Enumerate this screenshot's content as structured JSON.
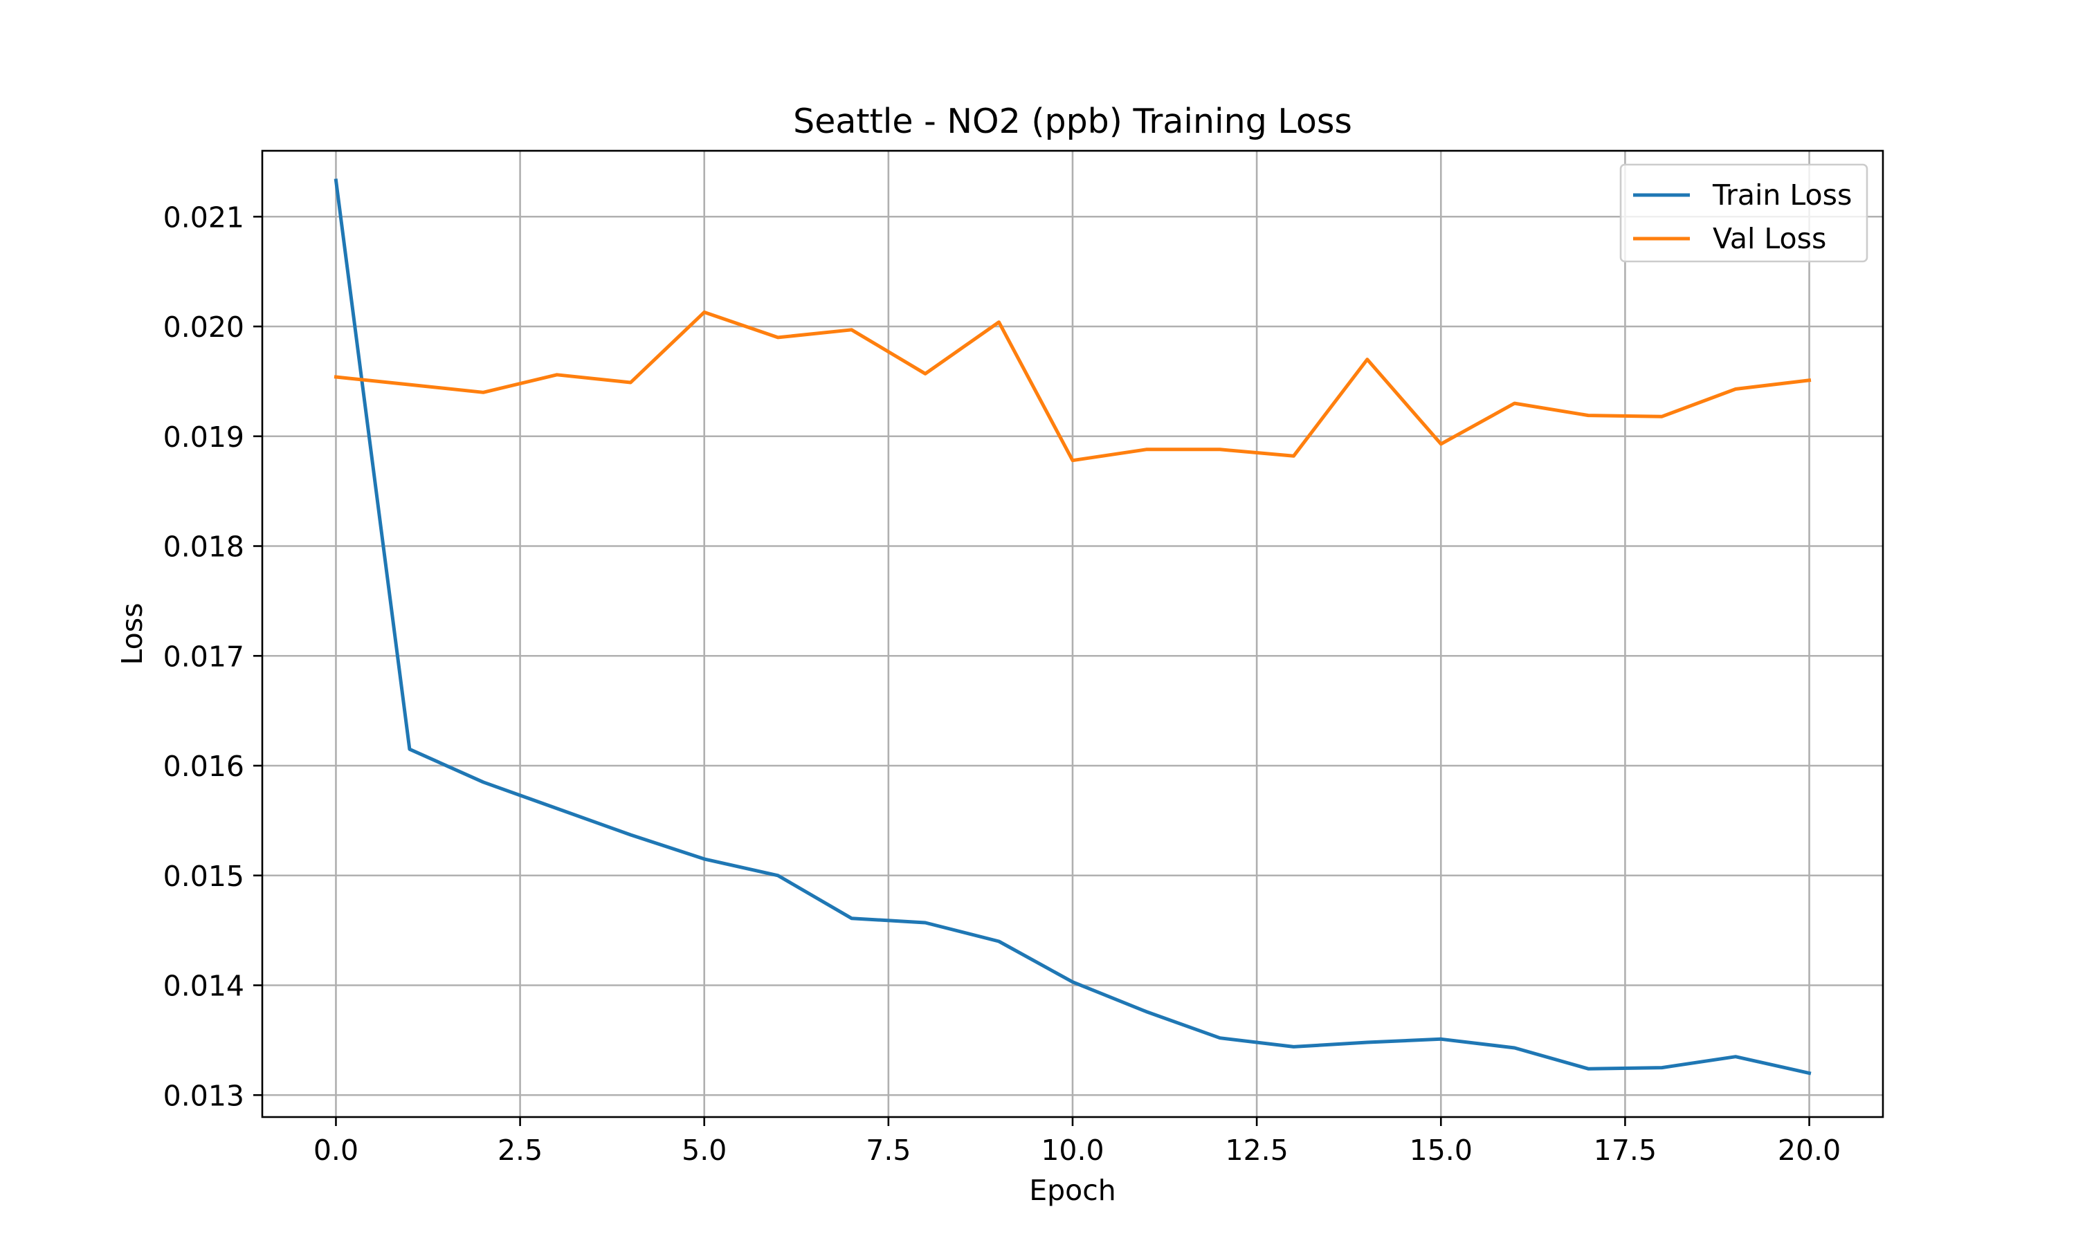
{
  "chart_data": {
    "type": "line",
    "title": "Seattle - NO2 (ppb) Training Loss",
    "xlabel": "Epoch",
    "ylabel": "Loss",
    "xlim": [
      -1.0,
      21.0
    ],
    "ylim": [
      0.0128,
      0.0216
    ],
    "xticks": [
      0.0,
      2.5,
      5.0,
      7.5,
      10.0,
      12.5,
      15.0,
      17.5,
      20.0
    ],
    "xtick_labels": [
      "0.0",
      "2.5",
      "5.0",
      "7.5",
      "10.0",
      "12.5",
      "15.0",
      "17.5",
      "20.0"
    ],
    "yticks": [
      0.013,
      0.014,
      0.015,
      0.016,
      0.017,
      0.018,
      0.019,
      0.02,
      0.021
    ],
    "ytick_labels": [
      "0.013",
      "0.014",
      "0.015",
      "0.016",
      "0.017",
      "0.018",
      "0.019",
      "0.020",
      "0.021"
    ],
    "grid": true,
    "legend_position": "top-right",
    "x": [
      0,
      1,
      2,
      3,
      4,
      5,
      6,
      7,
      8,
      9,
      10,
      11,
      12,
      13,
      14,
      15,
      16,
      17,
      18,
      19,
      20
    ],
    "series": [
      {
        "name": "Train Loss",
        "color": "#1f77b4",
        "values": [
          0.02133,
          0.01615,
          0.01585,
          0.01561,
          0.01537,
          0.01515,
          0.015,
          0.01461,
          0.01457,
          0.0144,
          0.01403,
          0.01376,
          0.01352,
          0.01344,
          0.01348,
          0.01351,
          0.01343,
          0.01324,
          0.01325,
          0.01335,
          0.0132
        ]
      },
      {
        "name": "Val Loss",
        "color": "#ff7f0e",
        "values": [
          0.01954,
          0.01947,
          0.0194,
          0.01956,
          0.01949,
          0.02013,
          0.0199,
          0.01997,
          0.01957,
          0.02004,
          0.01878,
          0.01888,
          0.01888,
          0.01882,
          0.0197,
          0.01893,
          0.0193,
          0.01919,
          0.01918,
          0.01943,
          0.01951
        ]
      }
    ]
  }
}
